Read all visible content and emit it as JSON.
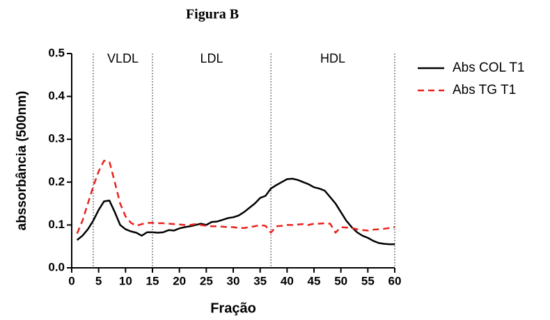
{
  "chart_data": {
    "type": "line",
    "title": "Figura B",
    "xlabel": "Fração",
    "ylabel": "abssorbância (500nm)",
    "x": [
      1,
      2,
      3,
      4,
      5,
      6,
      7,
      8,
      9,
      10,
      11,
      12,
      13,
      14,
      15,
      16,
      17,
      18,
      19,
      20,
      21,
      22,
      23,
      24,
      25,
      26,
      27,
      28,
      29,
      30,
      31,
      32,
      33,
      34,
      35,
      36,
      37,
      38,
      39,
      40,
      41,
      42,
      43,
      44,
      45,
      46,
      47,
      48,
      49,
      50,
      51,
      52,
      53,
      54,
      55,
      56,
      57,
      58,
      59,
      60
    ],
    "series": [
      {
        "name": "Abs COL T1",
        "color": "#000000",
        "dash": false,
        "values": [
          0.065,
          0.075,
          0.09,
          0.11,
          0.135,
          0.155,
          0.157,
          0.13,
          0.1,
          0.09,
          0.085,
          0.082,
          0.075,
          0.083,
          0.083,
          0.082,
          0.083,
          0.088,
          0.087,
          0.092,
          0.095,
          0.097,
          0.1,
          0.103,
          0.1,
          0.107,
          0.108,
          0.112,
          0.116,
          0.118,
          0.122,
          0.13,
          0.14,
          0.15,
          0.163,
          0.168,
          0.185,
          0.193,
          0.2,
          0.207,
          0.208,
          0.205,
          0.2,
          0.195,
          0.188,
          0.185,
          0.18,
          0.165,
          0.15,
          0.13,
          0.11,
          0.095,
          0.083,
          0.075,
          0.07,
          0.063,
          0.058,
          0.056,
          0.055,
          0.055
        ]
      },
      {
        "name": "Abs TG T1",
        "color": "#e8211c",
        "dash": true,
        "values": [
          0.08,
          0.11,
          0.15,
          0.19,
          0.225,
          0.25,
          0.248,
          0.2,
          0.15,
          0.12,
          0.105,
          0.098,
          0.102,
          0.105,
          0.105,
          0.104,
          0.104,
          0.103,
          0.102,
          0.101,
          0.1,
          0.1,
          0.102,
          0.1,
          0.098,
          0.097,
          0.097,
          0.096,
          0.095,
          0.095,
          0.093,
          0.093,
          0.095,
          0.097,
          0.1,
          0.098,
          0.082,
          0.097,
          0.098,
          0.1,
          0.1,
          0.101,
          0.102,
          0.1,
          0.103,
          0.103,
          0.104,
          0.103,
          0.082,
          0.095,
          0.094,
          0.093,
          0.09,
          0.088,
          0.087,
          0.089,
          0.09,
          0.091,
          0.093,
          0.095
        ]
      }
    ],
    "xlim": [
      0,
      60
    ],
    "xticks": [
      0,
      5,
      10,
      15,
      20,
      25,
      30,
      35,
      40,
      45,
      50,
      55,
      60
    ],
    "ylim": [
      0,
      0.5
    ],
    "yticks": [
      {
        "value": 0,
        "label": "0.0"
      },
      0.1,
      0.2,
      0.3,
      0.4,
      0.5
    ],
    "dividers": [
      4,
      15,
      37,
      60
    ],
    "regions": [
      "VLDL",
      "LDL",
      "HDL"
    ],
    "legend": "right"
  }
}
